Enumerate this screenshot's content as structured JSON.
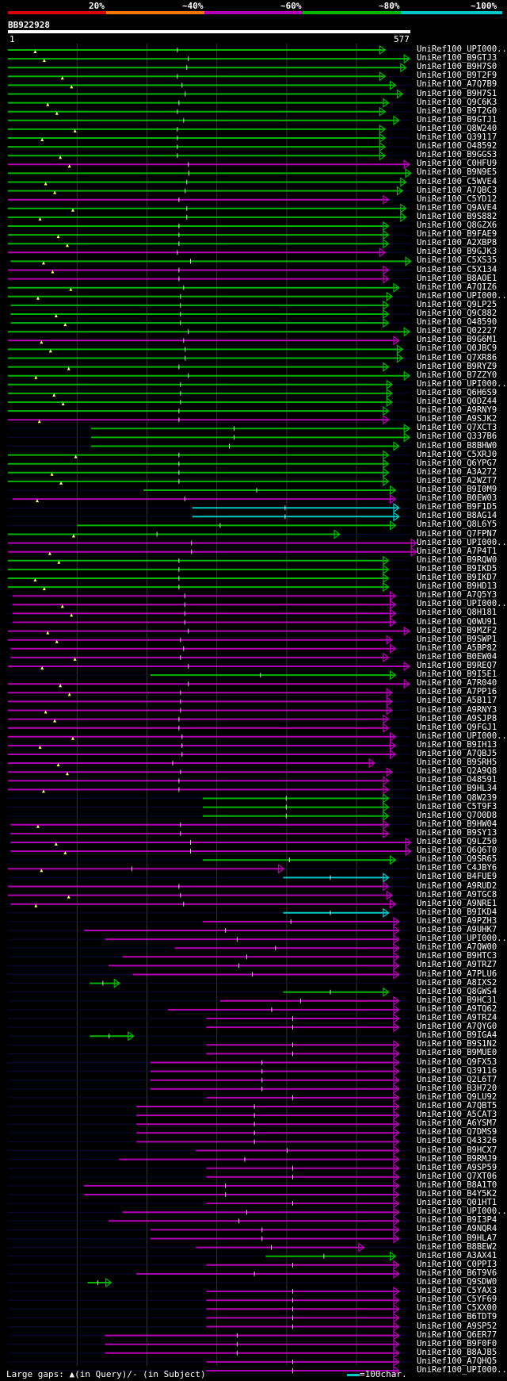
{
  "title": "BB922928",
  "colors": {
    "bin20": "#dc0000",
    "bin40": "#f07800",
    "bin60": "#b400b4",
    "bin80": "#00b400",
    "bin100": "#00c8c8",
    "green_line": "#00b400",
    "magenta_line": "#b400b4",
    "cyan_line": "#00c8c8",
    "triangle": "#ffff66",
    "grid": "#333333"
  },
  "legend": [
    {
      "label": "20%",
      "color": "#dc0000"
    },
    {
      "label": "~40%",
      "color": "#f07800"
    },
    {
      "label": "~60%",
      "color": "#b400b4"
    },
    {
      "label": "~80%",
      "color": "#00b400"
    },
    {
      "label": "~100%",
      "color": "#00c8c8"
    }
  ],
  "axis": {
    "start": "1",
    "end": "577"
  },
  "footer": {
    "left": "Large gaps: ▲(in Query)/- (in Subject)",
    "right": "=100char."
  },
  "hits": [
    {
      "name": "UniRef100_UPI000..",
      "color": "green",
      "start": 1,
      "end": 540
    },
    {
      "name": "UniRef100_B9GTJ3",
      "color": "green",
      "start": 1,
      "end": 575
    },
    {
      "name": "UniRef100_B9H7S0",
      "color": "green",
      "start": 1,
      "end": 570
    },
    {
      "name": "UniRef100_B9T2F9",
      "color": "green",
      "start": 1,
      "end": 540
    },
    {
      "name": "UniRef100_A7Q7B9",
      "color": "green",
      "start": 1,
      "end": 555
    },
    {
      "name": "UniRef100_B9H7S1",
      "color": "green",
      "start": 1,
      "end": 565
    },
    {
      "name": "UniRef100_Q9C6K3",
      "color": "green",
      "start": 1,
      "end": 545
    },
    {
      "name": "UniRef100_B9T2G0",
      "color": "green",
      "start": 1,
      "end": 540
    },
    {
      "name": "UniRef100_B9GTJ1",
      "color": "green",
      "start": 1,
      "end": 560
    },
    {
      "name": "UniRef100_Q8W240",
      "color": "green",
      "start": 1,
      "end": 540
    },
    {
      "name": "UniRef100_Q39117",
      "color": "green",
      "start": 1,
      "end": 540
    },
    {
      "name": "UniRef100_O48592",
      "color": "green",
      "start": 1,
      "end": 540
    },
    {
      "name": "UniRef100_B9GGS3",
      "color": "green",
      "start": 1,
      "end": 540
    },
    {
      "name": "UniRef100_C0HFU9",
      "color": "magenta",
      "start": 1,
      "end": 575
    },
    {
      "name": "UniRef100_B9N9E5",
      "color": "green",
      "start": 1,
      "end": 577
    },
    {
      "name": "UniRef100_C5WVE4",
      "color": "green",
      "start": 1,
      "end": 570
    },
    {
      "name": "UniRef100_A7QBC3",
      "color": "green",
      "start": 1,
      "end": 565
    },
    {
      "name": "UniRef100_C5YD12",
      "color": "magenta",
      "start": 1,
      "end": 545
    },
    {
      "name": "UniRef100_Q9AVE4",
      "color": "green",
      "start": 1,
      "end": 570
    },
    {
      "name": "UniRef100_B9S882",
      "color": "green",
      "start": 1,
      "end": 570
    },
    {
      "name": "UniRef100_Q8GZX6",
      "color": "green",
      "start": 1,
      "end": 545
    },
    {
      "name": "UniRef100_B9FAE9",
      "color": "green",
      "start": 1,
      "end": 545
    },
    {
      "name": "UniRef100_A2XBP8",
      "color": "green",
      "start": 1,
      "end": 545
    },
    {
      "name": "UniRef100_B9GJK3",
      "color": "magenta",
      "start": 1,
      "end": 540
    },
    {
      "name": "UniRef100_C5XS35",
      "color": "green",
      "start": 5,
      "end": 577
    },
    {
      "name": "UniRef100_C5X134",
      "color": "magenta",
      "start": 1,
      "end": 545
    },
    {
      "name": "UniRef100_B8AOE1",
      "color": "magenta",
      "start": 1,
      "end": 545
    },
    {
      "name": "UniRef100_A7QIZ6",
      "color": "green",
      "start": 1,
      "end": 560
    },
    {
      "name": "UniRef100_UPI000..",
      "color": "green",
      "start": 1,
      "end": 550
    },
    {
      "name": "UniRef100_Q9LP25",
      "color": "green",
      "start": 5,
      "end": 545
    },
    {
      "name": "UniRef100_Q9C882",
      "color": "green",
      "start": 5,
      "end": 545
    },
    {
      "name": "UniRef100_O48590",
      "color": "green",
      "start": 5,
      "end": 545
    },
    {
      "name": "UniRef100_Q02227",
      "color": "green",
      "start": 1,
      "end": 575
    },
    {
      "name": "UniRef100_B9G6M1",
      "color": "magenta",
      "start": 1,
      "end": 560
    },
    {
      "name": "UniRef100_Q0JBC9",
      "color": "green",
      "start": 1,
      "end": 565
    },
    {
      "name": "UniRef100_Q7XR86",
      "color": "green",
      "start": 1,
      "end": 565
    },
    {
      "name": "UniRef100_B9RYZ9",
      "color": "green",
      "start": 1,
      "end": 545
    },
    {
      "name": "UniRef100_B7ZZY0",
      "color": "green",
      "start": 1,
      "end": 575
    },
    {
      "name": "UniRef100_UPI000..",
      "color": "green",
      "start": 1,
      "end": 550
    },
    {
      "name": "UniRef100_Q6H6S9",
      "color": "green",
      "start": 1,
      "end": 550
    },
    {
      "name": "UniRef100_Q0DZ44",
      "color": "green",
      "start": 1,
      "end": 550
    },
    {
      "name": "UniRef100_A9RNY9",
      "color": "green",
      "start": 1,
      "end": 545
    },
    {
      "name": "UniRef100_A9SJK2",
      "color": "magenta",
      "start": 1,
      "end": 545
    },
    {
      "name": "UniRef100_Q7XCT3",
      "color": "green",
      "start": 120,
      "end": 575
    },
    {
      "name": "UniRef100_Q337B6",
      "color": "green",
      "start": 120,
      "end": 575
    },
    {
      "name": "UniRef100_B8BHW0",
      "color": "green",
      "start": 120,
      "end": 560
    },
    {
      "name": "UniRef100_C5XRJ0",
      "color": "green",
      "start": 1,
      "end": 545
    },
    {
      "name": "UniRef100_Q6YPG7",
      "color": "green",
      "start": 1,
      "end": 545
    },
    {
      "name": "UniRef100_A3A272",
      "color": "green",
      "start": 1,
      "end": 545
    },
    {
      "name": "UniRef100_A2WZT7",
      "color": "green",
      "start": 1,
      "end": 545
    },
    {
      "name": "UniRef100_B9I0M9",
      "color": "green",
      "start": 195,
      "end": 555
    },
    {
      "name": "UniRef100_B0EW03",
      "color": "magenta",
      "start": 8,
      "end": 555
    },
    {
      "name": "UniRef100_B9F1D5",
      "color": "cyan",
      "start": 265,
      "end": 560
    },
    {
      "name": "UniRef100_B8AG14",
      "color": "cyan",
      "start": 265,
      "end": 560
    },
    {
      "name": "UniRef100_Q8L6Y5",
      "color": "green",
      "start": 100,
      "end": 555
    },
    {
      "name": "UniRef100_Q7FPN7",
      "color": "green",
      "start": 1,
      "end": 475
    },
    {
      "name": "UniRef100_UPI000..",
      "color": "magenta",
      "start": 1,
      "end": 585
    },
    {
      "name": "UniRef100_A7P4T1",
      "color": "magenta",
      "start": 1,
      "end": 585
    },
    {
      "name": "UniRef100_B9RQW0",
      "color": "green",
      "start": 1,
      "end": 545
    },
    {
      "name": "UniRef100_B9IKD5",
      "color": "green",
      "start": 1,
      "end": 545
    },
    {
      "name": "UniRef100_B9IKD7",
      "color": "green",
      "start": 1,
      "end": 545
    },
    {
      "name": "UniRef100_B9HD13",
      "color": "green",
      "start": 1,
      "end": 545
    },
    {
      "name": "UniRef100_A7Q5Y3",
      "color": "magenta",
      "start": 8,
      "end": 555
    },
    {
      "name": "UniRef100_UPI000..",
      "color": "magenta",
      "start": 8,
      "end": 555
    },
    {
      "name": "UniRef100_Q8H181",
      "color": "magenta",
      "start": 8,
      "end": 555
    },
    {
      "name": "UniRef100_Q0WU91",
      "color": "magenta",
      "start": 8,
      "end": 555
    },
    {
      "name": "UniRef100_B9MZF2",
      "color": "magenta",
      "start": 1,
      "end": 575
    },
    {
      "name": "UniRef100_B9SWP1",
      "color": "magenta",
      "start": 1,
      "end": 550
    },
    {
      "name": "UniRef100_A5BP82",
      "color": "magenta",
      "start": 5,
      "end": 555
    },
    {
      "name": "UniRef100_B0EW04",
      "color": "magenta",
      "start": 5,
      "end": 545
    },
    {
      "name": "UniRef100_B9REQ7",
      "color": "magenta",
      "start": 1,
      "end": 575
    },
    {
      "name": "UniRef100_B9I5E1",
      "color": "green",
      "start": 205,
      "end": 555
    },
    {
      "name": "UniRef100_A7R040",
      "color": "magenta",
      "start": 1,
      "end": 575
    },
    {
      "name": "UniRef100_A7PP16",
      "color": "magenta",
      "start": 1,
      "end": 550
    },
    {
      "name": "UniRef100_A5B117",
      "color": "magenta",
      "start": 1,
      "end": 550
    },
    {
      "name": "UniRef100_A9RNY3",
      "color": "magenta",
      "start": 1,
      "end": 550
    },
    {
      "name": "UniRef100_A9SJP8",
      "color": "magenta",
      "start": 1,
      "end": 545
    },
    {
      "name": "UniRef100_Q9FGJ1",
      "color": "magenta",
      "start": 1,
      "end": 545
    },
    {
      "name": "UniRef100_UPI000..",
      "color": "magenta",
      "start": 1,
      "end": 555
    },
    {
      "name": "UniRef100_B9IH13",
      "color": "magenta",
      "start": 1,
      "end": 555
    },
    {
      "name": "UniRef100_A7QBJ5",
      "color": "magenta",
      "start": 1,
      "end": 555
    },
    {
      "name": "UniRef100_B9SRH5",
      "color": "magenta",
      "start": 1,
      "end": 525
    },
    {
      "name": "UniRef100_Q2A9Q8",
      "color": "magenta",
      "start": 1,
      "end": 550
    },
    {
      "name": "UniRef100_O48591",
      "color": "magenta",
      "start": 1,
      "end": 545
    },
    {
      "name": "UniRef100_B9HL34",
      "color": "magenta",
      "start": 1,
      "end": 545
    },
    {
      "name": "UniRef100_Q8W239",
      "color": "green",
      "start": 280,
      "end": 545
    },
    {
      "name": "UniRef100_C5T9F3",
      "color": "green",
      "start": 280,
      "end": 545
    },
    {
      "name": "UniRef100_Q7O0D8",
      "color": "green",
      "start": 280,
      "end": 545
    },
    {
      "name": "UniRef100_B9HW04",
      "color": "magenta",
      "start": 5,
      "end": 545
    },
    {
      "name": "UniRef100_B9SY13",
      "color": "magenta",
      "start": 5,
      "end": 545
    },
    {
      "name": "UniRef100_Q9LZ50",
      "color": "magenta",
      "start": 5,
      "end": 577
    },
    {
      "name": "UniRef100_Q6Q6T0",
      "color": "magenta",
      "start": 5,
      "end": 577
    },
    {
      "name": "UniRef100_Q9SR65",
      "color": "green",
      "start": 280,
      "end": 555
    },
    {
      "name": "UniRef100_C4JBY6",
      "color": "magenta",
      "start": 1,
      "end": 395
    },
    {
      "name": "UniRef100_B4FUE9",
      "color": "cyan",
      "start": 395,
      "end": 545
    },
    {
      "name": "UniRef100_A9RUD2",
      "color": "magenta",
      "start": 1,
      "end": 545
    },
    {
      "name": "UniRef100_A9TGC8",
      "color": "magenta",
      "start": 1,
      "end": 550
    },
    {
      "name": "UniRef100_A9NRE1",
      "color": "magenta",
      "start": 5,
      "end": 555
    },
    {
      "name": "UniRef100_B9IKD4",
      "color": "cyan",
      "start": 395,
      "end": 545
    },
    {
      "name": "UniRef100_A9PZH3",
      "color": "magenta",
      "start": 280,
      "end": 560
    },
    {
      "name": "UniRef100_A9UHK7",
      "color": "magenta",
      "start": 110,
      "end": 560
    },
    {
      "name": "UniRef100_UPI000..",
      "color": "magenta",
      "start": 140,
      "end": 560
    },
    {
      "name": "UniRef100_A7QW00",
      "color": "magenta",
      "start": 240,
      "end": 560
    },
    {
      "name": "UniRef100_B9HTC3",
      "color": "magenta",
      "start": 165,
      "end": 560
    },
    {
      "name": "UniRef100_A9TRZ7",
      "color": "magenta",
      "start": 145,
      "end": 560
    },
    {
      "name": "UniRef100_A7PLU6",
      "color": "magenta",
      "start": 180,
      "end": 560
    },
    {
      "name": "UniRef100_A8IXS2",
      "color": "green",
      "start": 118,
      "end": 160
    },
    {
      "name": "UniRef100_Q8GWS4",
      "color": "green",
      "start": 395,
      "end": 545
    },
    {
      "name": "UniRef100_B9HC31",
      "color": "magenta",
      "start": 305,
      "end": 560
    },
    {
      "name": "UniRef100_A9TQ62",
      "color": "magenta",
      "start": 230,
      "end": 560
    },
    {
      "name": "UniRef100_A9TRZ4",
      "color": "magenta",
      "start": 285,
      "end": 560
    },
    {
      "name": "UniRef100_A7QYG0",
      "color": "magenta",
      "start": 285,
      "end": 560
    },
    {
      "name": "UniRef100_B9IGA4",
      "color": "green",
      "start": 118,
      "end": 180
    },
    {
      "name": "UniRef100_B9S1N2",
      "color": "magenta",
      "start": 285,
      "end": 560
    },
    {
      "name": "UniRef100_B9MUE0",
      "color": "magenta",
      "start": 285,
      "end": 560
    },
    {
      "name": "UniRef100_Q9FX53",
      "color": "magenta",
      "start": 205,
      "end": 560
    },
    {
      "name": "UniRef100_Q39116",
      "color": "magenta",
      "start": 205,
      "end": 560
    },
    {
      "name": "UniRef100_Q2L6T7",
      "color": "magenta",
      "start": 205,
      "end": 560
    },
    {
      "name": "UniRef100_B3H720",
      "color": "magenta",
      "start": 205,
      "end": 560
    },
    {
      "name": "UniRef100_Q9LU92",
      "color": "magenta",
      "start": 285,
      "end": 560
    },
    {
      "name": "UniRef100_A7QBT5",
      "color": "magenta",
      "start": 185,
      "end": 560
    },
    {
      "name": "UniRef100_A5CAT3",
      "color": "magenta",
      "start": 185,
      "end": 560
    },
    {
      "name": "UniRef100_A6YSM7",
      "color": "magenta",
      "start": 185,
      "end": 560
    },
    {
      "name": "UniRef100_Q7DMS9",
      "color": "magenta",
      "start": 185,
      "end": 560
    },
    {
      "name": "UniRef100_Q43326",
      "color": "magenta",
      "start": 185,
      "end": 560
    },
    {
      "name": "UniRef100_B9HCX7",
      "color": "magenta",
      "start": 270,
      "end": 560
    },
    {
      "name": "UniRef100_B9RMJ9",
      "color": "magenta",
      "start": 160,
      "end": 560
    },
    {
      "name": "UniRef100_A9SP59",
      "color": "magenta",
      "start": 285,
      "end": 560
    },
    {
      "name": "UniRef100_Q7XT06",
      "color": "magenta",
      "start": 285,
      "end": 560
    },
    {
      "name": "UniRef100_B8A1T0",
      "color": "magenta",
      "start": 110,
      "end": 560
    },
    {
      "name": "UniRef100_B4Y5K2",
      "color": "magenta",
      "start": 110,
      "end": 560
    },
    {
      "name": "UniRef100_Q01HT1",
      "color": "magenta",
      "start": 285,
      "end": 560
    },
    {
      "name": "UniRef100_UPI000..",
      "color": "magenta",
      "start": 165,
      "end": 560
    },
    {
      "name": "UniRef100_B9I3P4",
      "color": "magenta",
      "start": 145,
      "end": 560
    },
    {
      "name": "UniRef100_A9NQR4",
      "color": "magenta",
      "start": 205,
      "end": 560
    },
    {
      "name": "UniRef100_B9HLA7",
      "color": "magenta",
      "start": 205,
      "end": 560
    },
    {
      "name": "UniRef100_B8BEW2",
      "color": "magenta",
      "start": 270,
      "end": 510
    },
    {
      "name": "UniRef100_A3AX41",
      "color": "green",
      "start": 370,
      "end": 555
    },
    {
      "name": "UniRef100_C0PPI3",
      "color": "magenta",
      "start": 285,
      "end": 560
    },
    {
      "name": "UniRef100_B6T9V6",
      "color": "magenta",
      "start": 185,
      "end": 560
    },
    {
      "name": "UniRef100_Q9SDW0",
      "color": "green",
      "start": 115,
      "end": 148
    },
    {
      "name": "UniRef100_C5YAX3",
      "color": "magenta",
      "start": 285,
      "end": 560
    },
    {
      "name": "UniRef100_C5YF69",
      "color": "magenta",
      "start": 285,
      "end": 560
    },
    {
      "name": "UniRef100_C5XX00",
      "color": "magenta",
      "start": 285,
      "end": 560
    },
    {
      "name": "UniRef100_B6TDT9",
      "color": "magenta",
      "start": 285,
      "end": 560
    },
    {
      "name": "UniRef100_A9SP52",
      "color": "magenta",
      "start": 285,
      "end": 560
    },
    {
      "name": "UniRef100_Q6ER77",
      "color": "magenta",
      "start": 140,
      "end": 560
    },
    {
      "name": "UniRef100_B9F0F0",
      "color": "magenta",
      "start": 140,
      "end": 560
    },
    {
      "name": "UniRef100_B8AJB5",
      "color": "magenta",
      "start": 140,
      "end": 560
    },
    {
      "name": "UniRef100_A7QHQ5",
      "color": "magenta",
      "start": 285,
      "end": 560
    },
    {
      "name": "UniRef100_UPI000..",
      "color": "magenta",
      "start": 285,
      "end": 560
    }
  ]
}
